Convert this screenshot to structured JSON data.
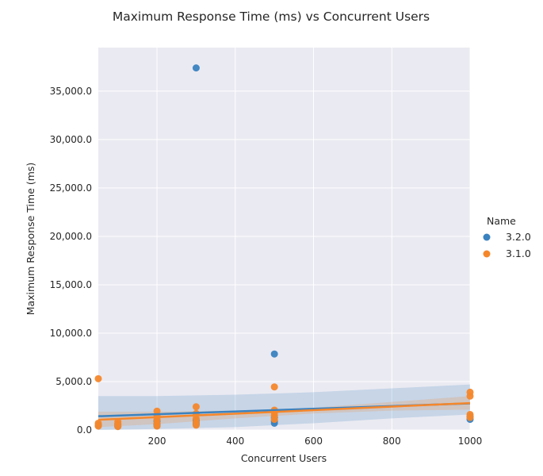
{
  "chart_data": {
    "type": "scatter",
    "title": "Maximum Response Time (ms) vs Concurrent Users",
    "xlabel": "Concurrent Users",
    "ylabel": "Maximum Response Time (ms)",
    "xlim": [
      50,
      1000
    ],
    "ylim": [
      0,
      39500
    ],
    "x_ticks": [
      200,
      400,
      600,
      800,
      1000
    ],
    "y_ticks": [
      0,
      5000,
      10000,
      15000,
      20000,
      25000,
      30000,
      35000
    ],
    "y_tick_labels": [
      "0.0",
      "5,000.0",
      "10,000.0",
      "15,000.0",
      "20,000.0",
      "25,000.0",
      "30,000.0",
      "35,000.0"
    ],
    "grid": true,
    "legend": {
      "title": "Name",
      "placement": "right"
    },
    "series": [
      {
        "name": "3.2.0",
        "color": "#3a82c0",
        "points": [
          [
            50,
            500
          ],
          [
            100,
            400
          ],
          [
            100,
            600
          ],
          [
            200,
            450
          ],
          [
            200,
            600
          ],
          [
            200,
            900
          ],
          [
            300,
            37400
          ],
          [
            300,
            600
          ],
          [
            300,
            800
          ],
          [
            300,
            1000
          ],
          [
            500,
            7850
          ],
          [
            500,
            700
          ],
          [
            500,
            900
          ],
          [
            500,
            1300
          ],
          [
            1000,
            1100
          ],
          [
            1000,
            1400
          ]
        ],
        "fit_line": [
          [
            50,
            1420
          ],
          [
            1000,
            2750
          ]
        ],
        "ci_band": [
          [
            50,
            3500,
            0
          ],
          [
            200,
            3500,
            100
          ],
          [
            400,
            3650,
            300
          ],
          [
            600,
            3900,
            700
          ],
          [
            800,
            4300,
            1200
          ],
          [
            1000,
            4700,
            1600
          ]
        ]
      },
      {
        "name": "3.1.0",
        "color": "#f5872b",
        "points": [
          [
            50,
            5300
          ],
          [
            50,
            400
          ],
          [
            50,
            700
          ],
          [
            100,
            350
          ],
          [
            100,
            600
          ],
          [
            100,
            850
          ],
          [
            200,
            400
          ],
          [
            200,
            700
          ],
          [
            200,
            1100
          ],
          [
            200,
            1500
          ],
          [
            200,
            1950
          ],
          [
            300,
            500
          ],
          [
            300,
            800
          ],
          [
            300,
            1200
          ],
          [
            300,
            1700
          ],
          [
            300,
            2400
          ],
          [
            500,
            4450
          ],
          [
            500,
            1100
          ],
          [
            500,
            1500
          ],
          [
            500,
            1800
          ],
          [
            500,
            2050
          ],
          [
            1000,
            3900
          ],
          [
            1000,
            3500
          ],
          [
            1000,
            1600
          ],
          [
            1000,
            1300
          ]
        ],
        "fit_line": [
          [
            50,
            1050
          ],
          [
            1000,
            2780
          ]
        ],
        "ci_band": [
          [
            50,
            1900,
            300
          ],
          [
            200,
            1900,
            600
          ],
          [
            400,
            2000,
            1200
          ],
          [
            600,
            2300,
            1700
          ],
          [
            800,
            2900,
            2000
          ],
          [
            1000,
            3500,
            2100
          ]
        ]
      }
    ]
  }
}
